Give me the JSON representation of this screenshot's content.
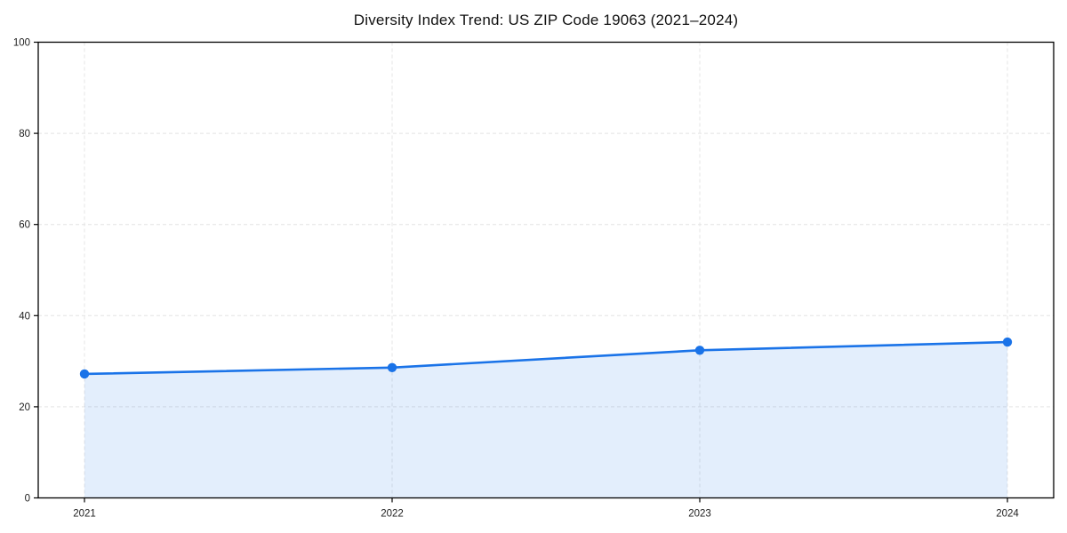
{
  "chart_data": {
    "type": "line",
    "area_fill": true,
    "title": "Diversity Index Trend: US ZIP Code 19063 (2021–2024)",
    "x": [
      "2021",
      "2022",
      "2023",
      "2024"
    ],
    "values": [
      27.2,
      28.6,
      32.4,
      34.2
    ],
    "xlabel": "",
    "ylabel": "",
    "ylim": [
      0,
      100
    ],
    "yticks": [
      0,
      20,
      40,
      60,
      80,
      100
    ],
    "grid": true,
    "grid_style": "dashed",
    "legend": "none",
    "marker": "circle",
    "colors": {
      "line": "#1a73e8",
      "area_fill_base": "#1a73e8",
      "grid": "#e4e4e4",
      "axis": "#000000",
      "tick_text": "#1c1c1c",
      "title_text": "#111111",
      "background": "#ffffff"
    }
  }
}
